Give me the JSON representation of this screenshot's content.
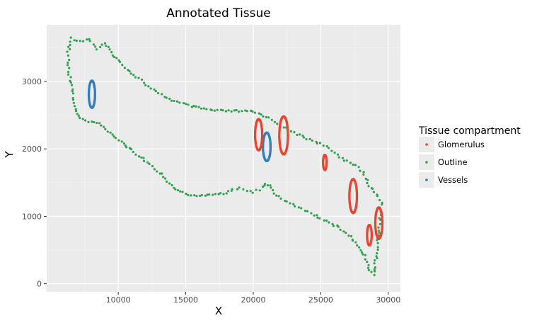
{
  "chart_data": {
    "type": "scatter",
    "title": "Annotated Tissue",
    "xlabel": "X",
    "ylabel": "Y",
    "xlim": [
      4700,
      30900
    ],
    "ylim": [
      -120,
      3840
    ],
    "x_ticks": [
      10000,
      15000,
      20000,
      25000,
      30000
    ],
    "y_ticks": [
      0,
      1000,
      2000,
      3000
    ],
    "grid": true,
    "legend": {
      "title": "Tissue compartment",
      "position": "right",
      "entries": [
        {
          "name": "Glomerulus",
          "color": "#e8442f"
        },
        {
          "name": "Outline",
          "color": "#2ea14f"
        },
        {
          "name": "Vessels",
          "color": "#2f7fc1"
        }
      ]
    },
    "series": [
      {
        "name": "Outline",
        "color": "#2ea14f",
        "shape": "polyline",
        "points": [
          [
            6300,
            3430
          ],
          [
            6500,
            3640
          ],
          [
            7200,
            3600
          ],
          [
            7800,
            3630
          ],
          [
            8400,
            3480
          ],
          [
            9000,
            3560
          ],
          [
            9600,
            3400
          ],
          [
            10200,
            3280
          ],
          [
            10800,
            3150
          ],
          [
            11500,
            3050
          ],
          [
            12200,
            2920
          ],
          [
            13000,
            2820
          ],
          [
            13800,
            2740
          ],
          [
            14600,
            2680
          ],
          [
            15400,
            2630
          ],
          [
            16200,
            2600
          ],
          [
            17000,
            2570
          ],
          [
            18000,
            2560
          ],
          [
            19000,
            2560
          ],
          [
            20000,
            2550
          ],
          [
            21000,
            2480
          ],
          [
            21800,
            2380
          ],
          [
            22600,
            2280
          ],
          [
            23400,
            2200
          ],
          [
            24200,
            2140
          ],
          [
            25000,
            2080
          ],
          [
            25800,
            1970
          ],
          [
            26600,
            1860
          ],
          [
            27400,
            1780
          ],
          [
            28100,
            1650
          ],
          [
            28500,
            1490
          ],
          [
            29100,
            1330
          ],
          [
            29500,
            1210
          ],
          [
            29300,
            800
          ],
          [
            29100,
            380
          ],
          [
            28900,
            130
          ],
          [
            28600,
            200
          ],
          [
            28300,
            410
          ],
          [
            27800,
            540
          ],
          [
            27200,
            700
          ],
          [
            26500,
            810
          ],
          [
            25800,
            890
          ],
          [
            25000,
            960
          ],
          [
            24300,
            1050
          ],
          [
            23600,
            1110
          ],
          [
            22900,
            1170
          ],
          [
            22300,
            1240
          ],
          [
            21700,
            1320
          ],
          [
            21200,
            1450
          ],
          [
            20900,
            1490
          ],
          [
            20500,
            1400
          ],
          [
            20000,
            1360
          ],
          [
            19500,
            1380
          ],
          [
            19000,
            1420
          ],
          [
            18500,
            1400
          ],
          [
            18000,
            1340
          ],
          [
            17400,
            1340
          ],
          [
            16800,
            1320
          ],
          [
            16000,
            1300
          ],
          [
            15200,
            1320
          ],
          [
            14400,
            1380
          ],
          [
            13800,
            1490
          ],
          [
            13200,
            1620
          ],
          [
            12500,
            1740
          ],
          [
            11800,
            1850
          ],
          [
            11000,
            1980
          ],
          [
            10200,
            2100
          ],
          [
            9400,
            2240
          ],
          [
            8600,
            2370
          ],
          [
            7800,
            2410
          ],
          [
            7200,
            2450
          ],
          [
            6800,
            2600
          ],
          [
            6600,
            2850
          ],
          [
            6300,
            3190
          ]
        ]
      },
      {
        "name": "Vessels",
        "color": "#2f7fc1",
        "shape": "ellipse",
        "ellipses": [
          {
            "cx": 8050,
            "cy": 2810,
            "rx": 230,
            "ry": 200
          },
          {
            "cx": 21000,
            "cy": 2030,
            "rx": 280,
            "ry": 210
          }
        ]
      },
      {
        "name": "Glomerulus",
        "color": "#e8442f",
        "shape": "ellipse",
        "ellipses": [
          {
            "cx": 20400,
            "cy": 2210,
            "rx": 260,
            "ry": 230
          },
          {
            "cx": 22250,
            "cy": 2200,
            "rx": 320,
            "ry": 280
          },
          {
            "cx": 25300,
            "cy": 1800,
            "rx": 130,
            "ry": 110
          },
          {
            "cx": 27400,
            "cy": 1300,
            "rx": 280,
            "ry": 250
          },
          {
            "cx": 28600,
            "cy": 720,
            "rx": 170,
            "ry": 150
          },
          {
            "cx": 29300,
            "cy": 900,
            "rx": 260,
            "ry": 230
          }
        ]
      }
    ]
  }
}
